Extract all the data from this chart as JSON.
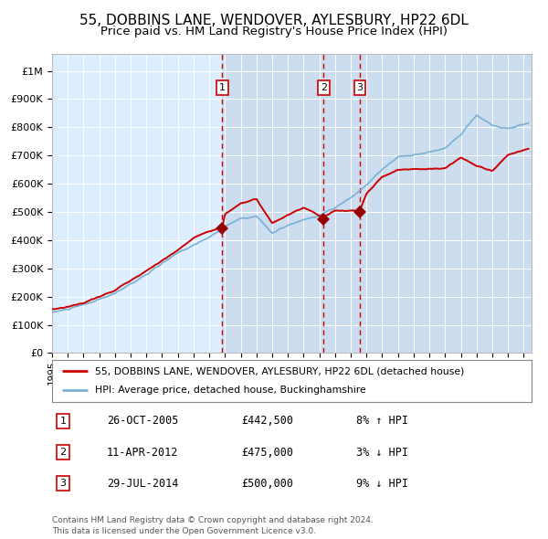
{
  "title": "55, DOBBINS LANE, WENDOVER, AYLESBURY, HP22 6DL",
  "subtitle": "Price paid vs. HM Land Registry's House Price Index (HPI)",
  "title_fontsize": 11,
  "subtitle_fontsize": 9.5,
  "background_color": "#ffffff",
  "plot_bg_color": "#ddeeff",
  "grid_color": "#ffffff",
  "legend_label_red": "55, DOBBINS LANE, WENDOVER, AYLESBURY, HP22 6DL (detached house)",
  "legend_label_blue": "HPI: Average price, detached house, Buckinghamshire",
  "ytick_values": [
    0,
    100000,
    200000,
    300000,
    400000,
    500000,
    600000,
    700000,
    800000,
    900000,
    1000000
  ],
  "ylim": [
    0,
    1060000
  ],
  "xlim_start": 1995.0,
  "xlim_end": 2025.5,
  "sale_dates": [
    2005.82,
    2012.28,
    2014.58
  ],
  "sale_prices": [
    442500,
    475000,
    500000
  ],
  "sale_labels": [
    "1",
    "2",
    "3"
  ],
  "footnote1": "Contains HM Land Registry data © Crown copyright and database right 2024.",
  "footnote2": "This data is licensed under the Open Government Licence v3.0.",
  "table_entries": [
    {
      "num": "1",
      "date": "26-OCT-2005",
      "price": "£442,500",
      "pct": "8%",
      "dir": "↑",
      "ref": "HPI"
    },
    {
      "num": "2",
      "date": "11-APR-2012",
      "price": "£475,000",
      "pct": "3%",
      "dir": "↓",
      "ref": "HPI"
    },
    {
      "num": "3",
      "date": "29-JUL-2014",
      "price": "£500,000",
      "pct": "9%",
      "dir": "↓",
      "ref": "HPI"
    }
  ],
  "red_color": "#cc0000",
  "blue_color": "#7ab0d4",
  "marker_color": "#990000",
  "dashed_color": "#cc0000",
  "shade_color": "#ccddf0"
}
